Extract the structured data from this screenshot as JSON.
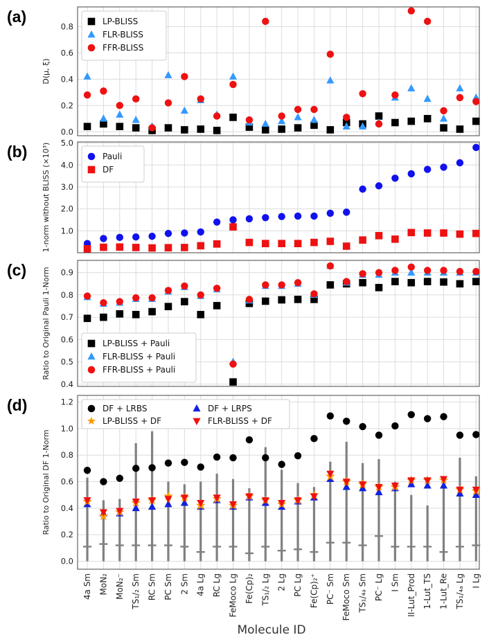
{
  "figure": {
    "xlabel": "Molecule ID"
  },
  "colors": {
    "lp": "#000000",
    "flr": "#3399ff",
    "ffr": "#ee1111",
    "pauli": "#1111ee",
    "df": "#ee1111",
    "lrbs": "#000000",
    "lrps": "#1122dd",
    "lpdf": "#ff9900",
    "flrdf": "#ee1111",
    "errbar": "#808080"
  },
  "chart_data": [
    {
      "panel": "(a)",
      "type": "scatter",
      "ylabel": "D(μ, ξ)",
      "ylim": [
        -0.03,
        0.95
      ],
      "yticks": [
        0.0,
        0.2,
        0.4,
        0.6,
        0.8
      ],
      "legend_position": "top-left",
      "series": [
        {
          "name": "LP-BLISS",
          "marker": "square",
          "color_key": "lp",
          "values": [
            0.04,
            0.06,
            0.04,
            0.03,
            0.01,
            0.03,
            0.015,
            0.02,
            0.01,
            0.11,
            0.035,
            0.015,
            0.02,
            0.03,
            0.05,
            0.015,
            0.07,
            0.06,
            0.12,
            0.07,
            0.08,
            0.1,
            0.03,
            0.02,
            0.08
          ]
        },
        {
          "name": "FLR-BLISS",
          "marker": "triangle",
          "color_key": "flr",
          "values": [
            0.42,
            0.1,
            0.13,
            0.09,
            0.04,
            0.43,
            0.16,
            0.24,
            0.13,
            0.42,
            0.07,
            0.06,
            0.08,
            0.11,
            0.09,
            0.39,
            0.04,
            0.04,
            0.07,
            0.26,
            0.33,
            0.25,
            0.1,
            0.33,
            0.26
          ]
        },
        {
          "name": "FFR-BLISS",
          "marker": "circle",
          "color_key": "ffr",
          "values": [
            0.28,
            0.31,
            0.2,
            0.25,
            0.03,
            0.22,
            0.42,
            0.25,
            0.12,
            0.36,
            0.09,
            0.84,
            0.12,
            0.17,
            0.17,
            0.59,
            0.11,
            0.29,
            0.06,
            0.28,
            0.92,
            0.84,
            0.16,
            0.26,
            0.23
          ]
        }
      ]
    },
    {
      "panel": "(b)",
      "type": "scatter",
      "ylabel": "1-norm without BLISS (×10³)",
      "ylim": [
        0.0,
        5.05
      ],
      "yticks": [
        1.0,
        2.0,
        3.0,
        4.0,
        5.0
      ],
      "legend_position": "top-left",
      "series": [
        {
          "name": "Pauli",
          "marker": "circle",
          "color_key": "pauli",
          "values": [
            0.42,
            0.65,
            0.7,
            0.72,
            0.75,
            0.88,
            0.9,
            0.95,
            1.4,
            1.5,
            1.55,
            1.6,
            1.65,
            1.67,
            1.67,
            1.8,
            1.85,
            2.9,
            3.05,
            3.4,
            3.6,
            3.8,
            3.9,
            4.1,
            4.8
          ]
        },
        {
          "name": "DF",
          "marker": "square",
          "color_key": "df",
          "values": [
            0.18,
            0.25,
            0.26,
            0.24,
            0.22,
            0.23,
            0.24,
            0.32,
            0.4,
            1.18,
            0.47,
            0.42,
            0.42,
            0.42,
            0.47,
            0.52,
            0.3,
            0.58,
            0.78,
            0.62,
            0.92,
            0.9,
            0.9,
            0.85,
            0.88
          ]
        }
      ]
    },
    {
      "panel": "(c)",
      "type": "scatter",
      "ylabel": "Ratio to Original Pauli 1-Norm",
      "ylim": [
        0.39,
        0.955
      ],
      "yticks": [
        0.4,
        0.5,
        0.6,
        0.7,
        0.8,
        0.9
      ],
      "legend_position": "bottom-left",
      "series": [
        {
          "name": "LP-BLISS + Pauli",
          "marker": "square",
          "color_key": "lp",
          "values": [
            0.695,
            0.7,
            0.715,
            0.712,
            0.725,
            0.748,
            0.77,
            0.712,
            0.752,
            0.41,
            0.762,
            0.772,
            0.778,
            0.78,
            0.78,
            0.845,
            0.85,
            0.855,
            0.833,
            0.86,
            0.855,
            0.86,
            0.858,
            0.85,
            0.86
          ]
        },
        {
          "name": "FLR-BLISS + Pauli",
          "marker": "triangle",
          "color_key": "flr",
          "values": [
            0.79,
            0.76,
            0.765,
            0.782,
            0.782,
            0.815,
            0.835,
            0.795,
            0.825,
            0.5,
            0.775,
            0.84,
            0.84,
            0.85,
            0.8,
            0.93,
            0.855,
            0.89,
            0.89,
            0.9,
            0.9,
            0.9,
            0.9,
            0.9,
            0.9
          ]
        },
        {
          "name": "FFR-BLISS + Pauli",
          "marker": "circle",
          "color_key": "ffr",
          "values": [
            0.795,
            0.765,
            0.77,
            0.787,
            0.787,
            0.82,
            0.84,
            0.8,
            0.83,
            0.49,
            0.78,
            0.845,
            0.845,
            0.855,
            0.805,
            0.93,
            0.86,
            0.895,
            0.9,
            0.91,
            0.925,
            0.91,
            0.91,
            0.905,
            0.905
          ]
        }
      ]
    },
    {
      "panel": "(d)",
      "type": "scatter",
      "ylabel": "Ratio to Original DF 1-Norm",
      "ylim": [
        -0.06,
        1.25
      ],
      "yticks": [
        0.0,
        0.2,
        0.4,
        0.6,
        0.8,
        1.0,
        1.2
      ],
      "legend_position": "top-left",
      "legend_columns": 2,
      "series": [
        {
          "name": "DF + LRBS",
          "marker": "circle",
          "color_key": "lrbs",
          "values": [
            0.685,
            0.6,
            0.625,
            0.7,
            0.705,
            0.74,
            0.745,
            0.71,
            0.785,
            0.78,
            0.915,
            0.78,
            0.73,
            0.795,
            0.925,
            1.095,
            1.055,
            1.015,
            0.95,
            1.02,
            1.105,
            1.075,
            1.09,
            0.95,
            0.955
          ]
        },
        {
          "name": "DF + LRPS",
          "marker": "triangle",
          "color_key": "lrps",
          "values": [
            0.43,
            0.36,
            0.36,
            0.4,
            0.41,
            0.43,
            0.44,
            0.41,
            0.46,
            0.41,
            0.48,
            0.44,
            0.41,
            0.45,
            0.48,
            0.62,
            0.56,
            0.55,
            0.52,
            0.55,
            0.58,
            0.57,
            0.57,
            0.51,
            0.5
          ]
        },
        {
          "name": "LP-BLISS + DF",
          "marker": "star",
          "color_key": "lpdf",
          "values": [
            0.45,
            0.34,
            0.37,
            0.44,
            0.46,
            0.49,
            0.48,
            0.42,
            0.47,
            0.42,
            0.49,
            0.46,
            0.43,
            0.46,
            0.5,
            0.64,
            0.6,
            0.58,
            0.56,
            0.56,
            0.61,
            0.61,
            0.61,
            0.54,
            0.53
          ]
        },
        {
          "name": "FLR-BLISS + DF",
          "marker": "triangle-down",
          "color_key": "flrdf",
          "values": [
            0.46,
            0.37,
            0.38,
            0.45,
            0.46,
            0.47,
            0.48,
            0.44,
            0.48,
            0.43,
            0.49,
            0.46,
            0.44,
            0.46,
            0.49,
            0.66,
            0.6,
            0.58,
            0.56,
            0.57,
            0.61,
            0.61,
            0.62,
            0.54,
            0.54
          ]
        }
      ],
      "error_ranges": {
        "low": [
          0.0,
          0.0,
          0.0,
          0.0,
          0.0,
          0.0,
          0.0,
          0.0,
          0.0,
          0.0,
          0.0,
          0.0,
          0.0,
          0.0,
          0.0,
          0.0,
          0.0,
          0.0,
          0.0,
          0.0,
          0.0,
          0.0,
          0.0,
          0.0,
          0.0
        ],
        "high": [
          0.63,
          0.46,
          0.47,
          0.89,
          0.98,
          0.6,
          0.58,
          0.6,
          0.66,
          0.62,
          0.55,
          0.86,
          0.69,
          0.59,
          0.56,
          0.75,
          0.9,
          0.74,
          0.77,
          0.6,
          0.5,
          0.42,
          0.56,
          0.78,
          0.64
        ],
        "mid": [
          0.11,
          0.13,
          0.12,
          0.12,
          0.12,
          0.12,
          0.11,
          0.07,
          0.11,
          0.11,
          0.06,
          0.11,
          0.08,
          0.09,
          0.07,
          0.14,
          0.14,
          0.12,
          0.19,
          0.11,
          0.11,
          0.11,
          0.07,
          0.11,
          0.12
        ]
      },
      "categories": [
        "4a Sm",
        "MoN₂",
        "MoN₂⁻",
        "TS₁/₂ Sm",
        "RC Sm",
        "PC Sm",
        "2 Sm",
        "4a Lg",
        "RC Lg",
        "FeMoco Lg",
        "Fe(Cp)₂",
        "TS₁/₂ Lg",
        "2 Lg",
        "PC Lg",
        "Fe(Cp)₂⁺",
        "PC⁻ Sm",
        "FeMoco Sm",
        "TS₁/₄ₐ Sm",
        "PC⁻ Lg",
        "I Sm",
        "II-Lut_Prod",
        "1-Lut_TS",
        "1-Lut_Re",
        "TS₁/₄ₐ Lg",
        "I Lg"
      ]
    }
  ]
}
